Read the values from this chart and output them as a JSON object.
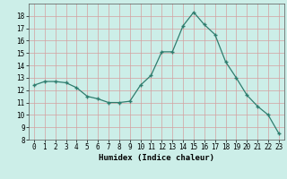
{
  "x": [
    0,
    1,
    2,
    3,
    4,
    5,
    6,
    7,
    8,
    9,
    10,
    11,
    12,
    13,
    14,
    15,
    16,
    17,
    18,
    19,
    20,
    21,
    22,
    23
  ],
  "y": [
    12.4,
    12.7,
    12.7,
    12.6,
    12.2,
    11.5,
    11.3,
    11.0,
    11.0,
    11.1,
    12.4,
    13.2,
    15.1,
    15.1,
    17.2,
    18.3,
    17.3,
    16.5,
    14.3,
    13.0,
    11.6,
    10.7,
    10.0,
    8.5
  ],
  "xlabel": "Humidex (Indice chaleur)",
  "line_color": "#2e7d6e",
  "marker": "+",
  "bg_color": "#cceee8",
  "grid_color": "#d4a0a0",
  "xlim": [
    -0.5,
    23.5
  ],
  "ylim": [
    8,
    19
  ],
  "yticks": [
    8,
    9,
    10,
    11,
    12,
    13,
    14,
    15,
    16,
    17,
    18
  ],
  "xticks": [
    0,
    1,
    2,
    3,
    4,
    5,
    6,
    7,
    8,
    9,
    10,
    11,
    12,
    13,
    14,
    15,
    16,
    17,
    18,
    19,
    20,
    21,
    22,
    23
  ],
  "xlabel_fontsize": 6.5,
  "tick_fontsize": 5.5
}
